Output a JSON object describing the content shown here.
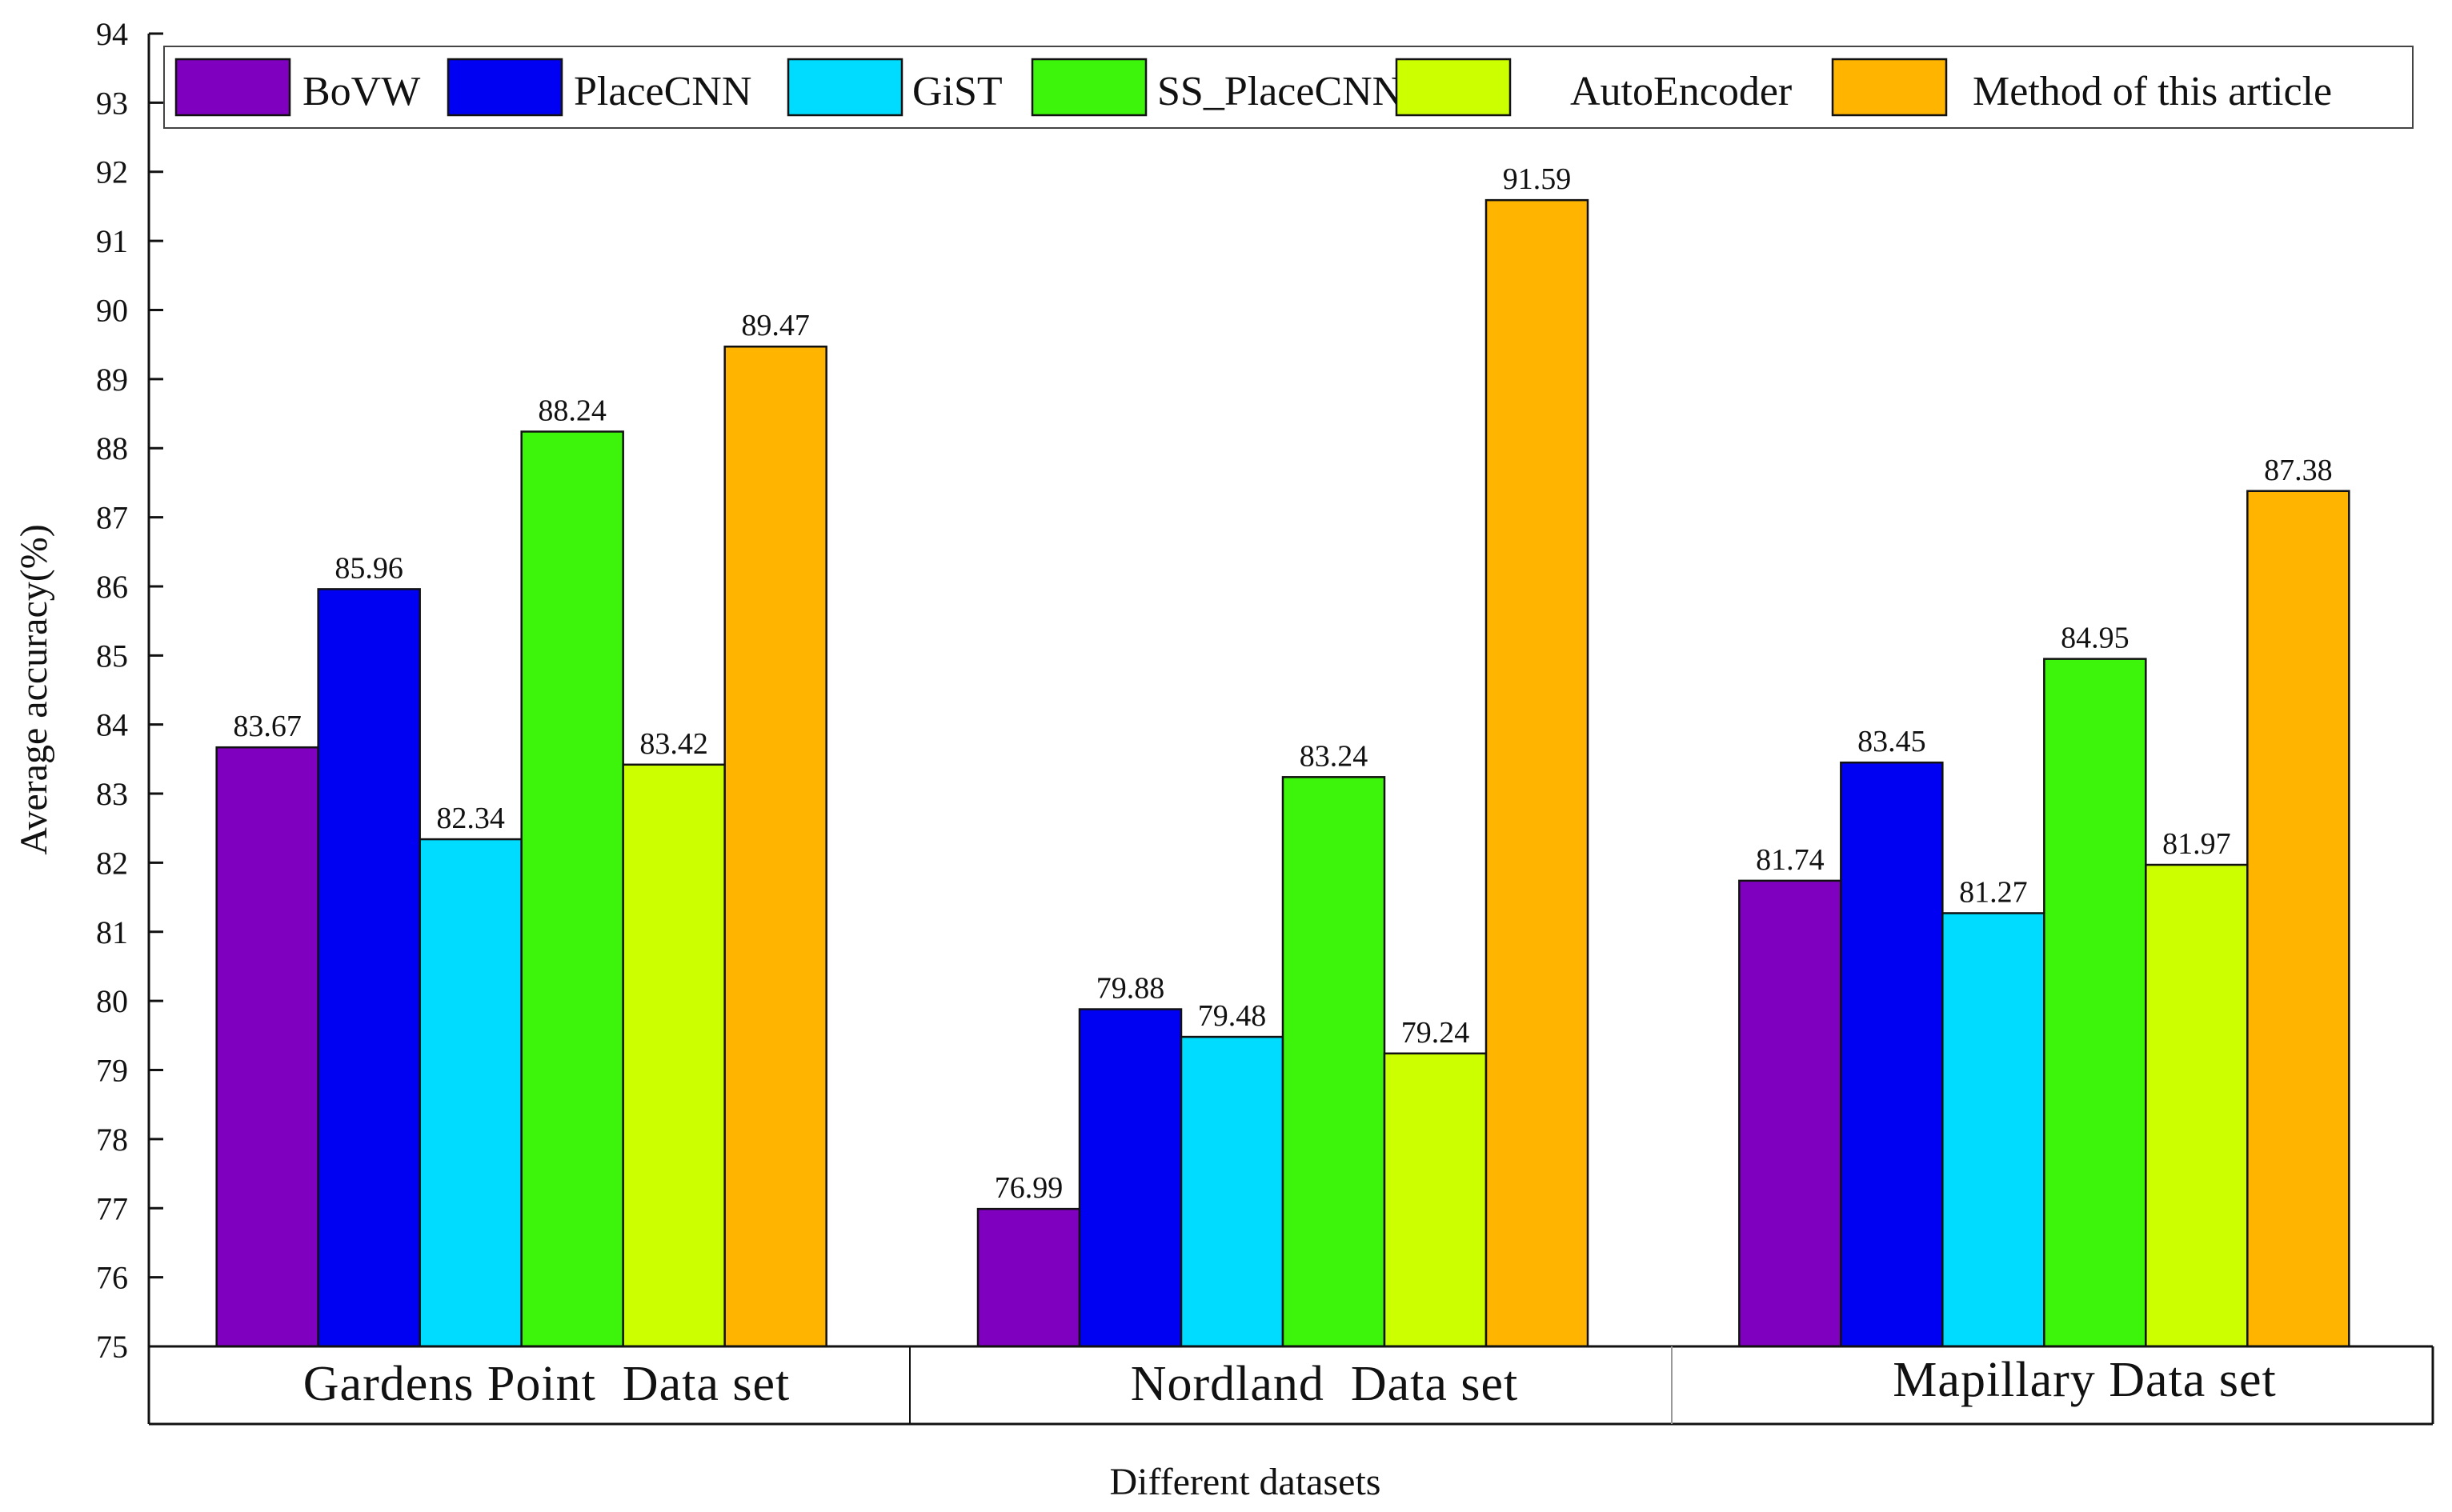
{
  "chart_data": {
    "type": "bar",
    "title": "",
    "xlabel": "Different datasets",
    "ylabel": "Average accuracy(%)",
    "ylim": [
      75,
      94
    ],
    "yticks": [
      "75",
      "76",
      "77",
      "78",
      "79",
      "80",
      "81",
      "82",
      "83",
      "84",
      "85",
      "86",
      "87",
      "88",
      "89",
      "90",
      "91",
      "92",
      "93",
      "94"
    ],
    "categories": [
      "Gardens Point  Data set",
      "Nordland  Data set",
      "Mapillary Data set"
    ],
    "legend_position": "top",
    "series": [
      {
        "name": "BoVW",
        "color": "#7f00bf",
        "values": [
          83.67,
          76.99,
          81.74
        ]
      },
      {
        "name": "PlaceCNN",
        "color": "#0000f2",
        "values": [
          85.96,
          79.88,
          83.45
        ]
      },
      {
        "name": "GiST",
        "color": "#00dcff",
        "values": [
          82.34,
          79.48,
          81.27
        ]
      },
      {
        "name": "SS_PlaceCNN",
        "color": "#3cf50a",
        "values": [
          88.24,
          83.24,
          84.95
        ]
      },
      {
        "name": "AutoEncoder",
        "color": "#ccff00",
        "values": [
          83.42,
          79.24,
          81.97
        ]
      },
      {
        "name": "Method of this article",
        "color": "#ffb400",
        "values": [
          89.47,
          91.59,
          87.38
        ]
      }
    ]
  }
}
